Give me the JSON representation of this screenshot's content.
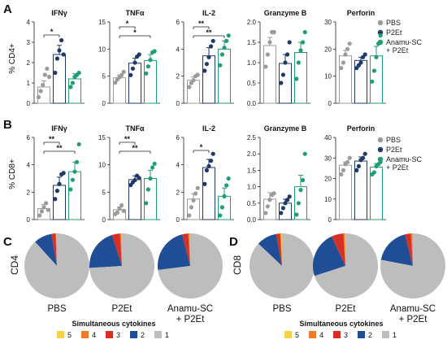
{
  "panels": {
    "A": "A",
    "B": "B",
    "C": "C",
    "D": "D"
  },
  "group_labels": [
    "PBS",
    "P2Et",
    "Anamu-SC\n+ P2Et"
  ],
  "group_colors": [
    "#9b9b9b",
    "#1f3a68",
    "#1f9e73"
  ],
  "legend_labels": [
    "PBS",
    "P2Et",
    "Anamu-SC",
    "+ P2Et"
  ],
  "sig": {
    "one": "*",
    "two": "**"
  },
  "chart_data": [
    {
      "row": "A",
      "type": "bar",
      "ylabel": "% CD4+",
      "subplots": [
        {
          "title": "IFNγ",
          "ylim": [
            0,
            4
          ],
          "ticks": [
            0,
            1,
            2,
            3,
            4
          ],
          "means": [
            0.8,
            2.4,
            1.2
          ],
          "errors": [
            0.3,
            0.45,
            0.25
          ],
          "points": [
            [
              0.3,
              0.6,
              0.9,
              1.4,
              1.7,
              1.3
            ],
            [
              1.5,
              2.2,
              2.6,
              3.1,
              2.4
            ],
            [
              0.8,
              1.0,
              1.3,
              1.4,
              1.5
            ]
          ],
          "brackets": [
            {
              "from": 0,
              "to": 1,
              "label": "*"
            }
          ]
        },
        {
          "title": "TNFα",
          "ylim": [
            0,
            15
          ],
          "ticks": [
            0,
            5,
            10,
            15
          ],
          "means": [
            4.7,
            7.4,
            7.9
          ],
          "errors": [
            0.5,
            0.9,
            1.1
          ],
          "points": [
            [
              3.8,
              4.4,
              4.8,
              5.2,
              5.8
            ],
            [
              5.2,
              6.4,
              7.5,
              8.6,
              9.0
            ],
            [
              5.5,
              6.8,
              8.0,
              9.4,
              9.6
            ]
          ],
          "brackets": [
            {
              "from": 0,
              "to": 1,
              "label": "*"
            },
            {
              "from": 0,
              "to": 2,
              "label": "*"
            }
          ]
        },
        {
          "title": "IL-2",
          "ylim": [
            0,
            6
          ],
          "ticks": [
            0,
            2,
            4,
            6
          ],
          "means": [
            1.7,
            3.5,
            4.0
          ],
          "errors": [
            0.25,
            0.6,
            0.6
          ],
          "points": [
            [
              1.2,
              1.5,
              1.7,
              2.0,
              2.1
            ],
            [
              2.4,
              2.9,
              3.4,
              4.2,
              4.6
            ],
            [
              2.8,
              3.6,
              4.1,
              4.6,
              5.0
            ]
          ],
          "brackets": [
            {
              "from": 0,
              "to": 1,
              "label": "**"
            },
            {
              "from": 0,
              "to": 2,
              "label": "**"
            }
          ]
        },
        {
          "title": "Granzyme B",
          "ylim": [
            0,
            2.0
          ],
          "ticks": [
            0.0,
            0.5,
            1.0,
            1.5,
            2.0
          ],
          "means": [
            1.42,
            0.98,
            1.25
          ],
          "errors": [
            0.2,
            0.22,
            0.25
          ],
          "points": [
            [
              0.9,
              1.2,
              1.5,
              1.75,
              1.75
            ],
            [
              0.5,
              0.7,
              1.0,
              1.2,
              1.5
            ],
            [
              0.6,
              1.0,
              1.3,
              1.5,
              1.75
            ]
          ],
          "brackets": []
        },
        {
          "title": "Perforin",
          "ylim": [
            0,
            30
          ],
          "ticks": [
            0,
            10,
            20,
            30
          ],
          "means": [
            17.5,
            15.8,
            17.5
          ],
          "errors": [
            2.0,
            1.2,
            3.5
          ],
          "points": [
            [
              13,
              15,
              18,
              20,
              22
            ],
            [
              13,
              14,
              15,
              17,
              18
            ],
            [
              8,
              12,
              17,
              22,
              25
            ]
          ],
          "brackets": []
        }
      ]
    },
    {
      "row": "B",
      "type": "bar",
      "ylabel": "% CD8+",
      "subplots": [
        {
          "title": "IFNγ",
          "ylim": [
            0,
            6
          ],
          "ticks": [
            0,
            2,
            4,
            6
          ],
          "means": [
            0.8,
            2.5,
            3.5
          ],
          "errors": [
            0.3,
            0.6,
            0.7
          ],
          "points": [
            [
              0.3,
              0.6,
              0.9,
              1.2,
              0.7
            ],
            [
              1.5,
              2.1,
              2.6,
              3.3,
              3.4
            ],
            [
              2.2,
              2.9,
              3.5,
              4.2,
              5.5
            ]
          ],
          "brackets": [
            {
              "from": 0,
              "to": 1,
              "label": "**"
            },
            {
              "from": 0,
              "to": 2,
              "label": "**"
            }
          ]
        },
        {
          "title": "TNFα",
          "ylim": [
            0,
            15
          ],
          "ticks": [
            0,
            5,
            10,
            15
          ],
          "means": [
            1.8,
            7.3,
            7.5
          ],
          "errors": [
            0.5,
            0.7,
            1.5
          ],
          "points": [
            [
              1.0,
              1.3,
              2.0,
              2.6,
              1.6
            ],
            [
              6.3,
              6.8,
              7.2,
              8.0,
              7.6
            ],
            [
              3.0,
              5.5,
              7.5,
              9.5,
              10.2
            ]
          ],
          "brackets": [
            {
              "from": 0,
              "to": 1,
              "label": "**"
            },
            {
              "from": 0,
              "to": 2,
              "label": "**"
            }
          ]
        },
        {
          "title": "IL-2",
          "ylim": [
            0,
            6
          ],
          "ticks": [
            0,
            2,
            4,
            6
          ],
          "means": [
            1.5,
            3.8,
            1.7
          ],
          "errors": [
            0.4,
            0.6,
            0.6
          ],
          "points": [
            [
              0.3,
              0.9,
              1.4,
              1.9,
              2.3
            ],
            [
              2.6,
              3.6,
              3.9,
              4.3,
              4.8
            ],
            [
              0.3,
              0.9,
              1.7,
              2.5,
              3.0
            ]
          ],
          "brackets": [
            {
              "from": 0,
              "to": 1,
              "label": "*"
            }
          ]
        },
        {
          "title": "Granzyme B",
          "ylim": [
            0,
            2.5
          ],
          "ticks": [
            0.0,
            0.5,
            1.0,
            1.5,
            2.0,
            2.5
          ],
          "means": [
            0.62,
            0.5,
            1.0
          ],
          "errors": [
            0.2,
            0.12,
            0.35
          ],
          "points": [
            [
              0.2,
              0.4,
              0.6,
              0.75,
              0.8
            ],
            [
              0.2,
              0.35,
              0.5,
              0.6,
              0.7
            ],
            [
              0.15,
              0.5,
              0.9,
              1.2,
              2.0
            ]
          ],
          "brackets": []
        },
        {
          "title": "Perforin",
          "ylim": [
            0,
            40
          ],
          "ticks": [
            0,
            10,
            20,
            30,
            40
          ],
          "means": [
            26.5,
            28.5,
            25.5
          ],
          "errors": [
            1.5,
            2.0,
            1.8
          ],
          "points": [
            [
              22,
              24,
              27,
              28,
              30
            ],
            [
              24,
              26,
              29,
              30,
              32
            ],
            [
              22,
              23,
              26,
              27,
              28
            ]
          ],
          "brackets": []
        }
      ]
    },
    {
      "row": "C",
      "type": "pie",
      "ylabel": "CD4",
      "groups": [
        "PBS",
        "P2Et",
        "Anamu-SC\n+ P2Et"
      ],
      "slice_order": [
        "5",
        "4",
        "3",
        "2",
        "1"
      ],
      "fractions": [
        [
          0.003,
          0.004,
          0.02,
          0.09,
          0.883
        ],
        [
          0.003,
          0.007,
          0.04,
          0.21,
          0.74
        ],
        [
          0.003,
          0.007,
          0.03,
          0.23,
          0.73
        ]
      ]
    },
    {
      "row": "D",
      "type": "pie",
      "ylabel": "CD8",
      "groups": [
        "PBS",
        "P2Et",
        "Anamu-SC\n+ P2Et"
      ],
      "slice_order": [
        "5",
        "4",
        "3",
        "2",
        "1"
      ],
      "fractions": [
        [
          0.005,
          0.005,
          0.02,
          0.1,
          0.87
        ],
        [
          0.003,
          0.007,
          0.06,
          0.23,
          0.7
        ],
        [
          0.002,
          0.008,
          0.03,
          0.18,
          0.78
        ]
      ]
    }
  ],
  "cytokine_legend": {
    "title": "Simultaneous cytokines",
    "items": [
      {
        "label": "5",
        "color": "#f5d247"
      },
      {
        "label": "4",
        "color": "#ec7b2c"
      },
      {
        "label": "3",
        "color": "#d62f26"
      },
      {
        "label": "2",
        "color": "#1f4e96"
      },
      {
        "label": "1",
        "color": "#bdbdbd"
      }
    ]
  }
}
